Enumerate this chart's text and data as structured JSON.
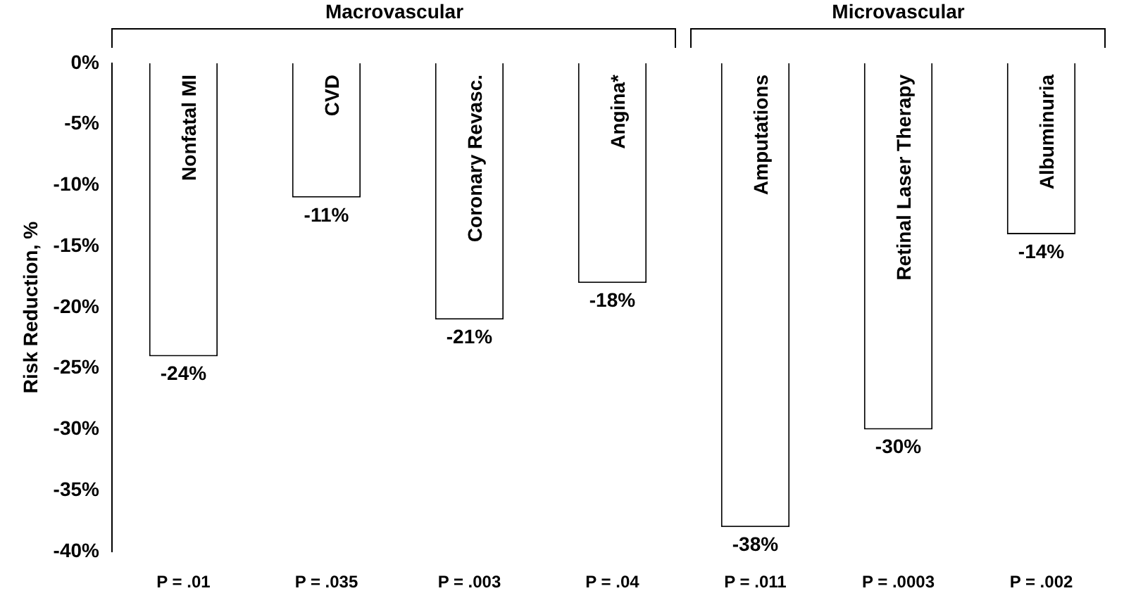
{
  "chart_data": {
    "type": "bar",
    "ylabel": "Risk Reduction, %",
    "categories": [
      "Nonfatal MI",
      "CVD",
      "Coronary Revasc.",
      "Angina*",
      "Amputations",
      "Retinal Laser Therapy",
      "Albuminuria"
    ],
    "values": [
      -24,
      -11,
      -21,
      -18,
      -38,
      -30,
      -14
    ],
    "value_labels": [
      "-24%",
      "-11%",
      "-21%",
      "-18%",
      "-38%",
      "-30%",
      "-14%"
    ],
    "color": "#ffffff",
    "ylim": [
      -40,
      0
    ],
    "yticks": [
      {
        "value": 0,
        "label": "0%"
      },
      {
        "value": -5,
        "label": "-5%"
      },
      {
        "value": -10,
        "label": "-10%"
      },
      {
        "value": -15,
        "label": "-15%"
      },
      {
        "value": -20,
        "label": "-20%"
      },
      {
        "value": -25,
        "label": "-25%"
      },
      {
        "value": -30,
        "label": "-30%"
      },
      {
        "value": -35,
        "label": "-35%"
      },
      {
        "value": -40,
        "label": "-40%"
      }
    ],
    "grid": false,
    "legend": false,
    "annotations": [
      "Macrovascular",
      "Microvascular",
      "P = .01",
      "P = .035",
      "P = .003",
      "P = .04",
      "P = .011",
      "P = .0003",
      "P = .002"
    ]
  }
}
